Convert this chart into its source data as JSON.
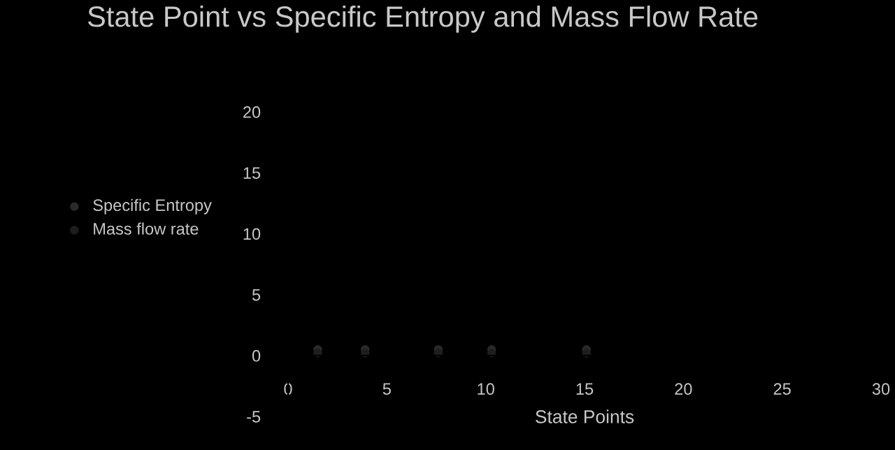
{
  "chart_data": {
    "type": "scatter",
    "title": "State Point vs Specific Entropy and Mass Flow Rate",
    "xlabel": "State Points",
    "x": [
      1.5,
      3.9,
      7.6,
      10.3,
      15.1
    ],
    "series": [
      {
        "name": "Specific Entropy",
        "color": "#2a2a2a",
        "values": [
          0.5,
          0.5,
          0.5,
          0.5,
          0.5
        ]
      },
      {
        "name": "Mass flow rate",
        "color": "#1e1e1e",
        "values": [
          0.2,
          0.2,
          0.2,
          0.2,
          0.2
        ]
      }
    ],
    "xlim": [
      0,
      30
    ],
    "xticks": [
      0,
      5,
      10,
      15,
      20,
      25,
      30
    ],
    "ylim": [
      -5,
      20
    ],
    "yticks": [
      -5,
      0,
      5,
      10,
      15,
      20
    ],
    "marker": "circle",
    "legend": "left",
    "grid": false
  }
}
